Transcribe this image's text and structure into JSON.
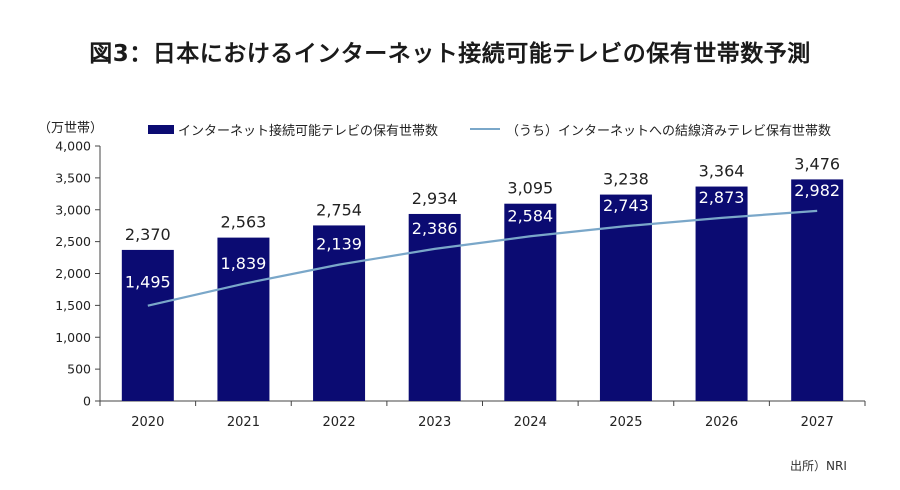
{
  "title": "図3：日本におけるインターネット接続可能テレビの保有世帯数予測",
  "source": "出所）NRI",
  "chart_data": {
    "type": "bar",
    "ylabel": "（万世帯）",
    "ylim": [
      0,
      4000
    ],
    "yticks": [
      "0",
      "500",
      "1,000",
      "1,500",
      "2,000",
      "2,500",
      "3,000",
      "3,500",
      "4,000"
    ],
    "ytick_values": [
      0,
      500,
      1000,
      1500,
      2000,
      2500,
      3000,
      3500,
      4000
    ],
    "categories": [
      "2020",
      "2021",
      "2022",
      "2023",
      "2024",
      "2025",
      "2026",
      "2027"
    ],
    "legend_position": "top",
    "series": [
      {
        "name": "インターネット接続可能テレビの保有世帯数",
        "type": "bar",
        "color": "#0b0b72",
        "values": [
          2370,
          2563,
          2754,
          2934,
          3095,
          3238,
          3364,
          3476
        ],
        "labels": [
          "2,370",
          "2,563",
          "2,754",
          "2,934",
          "3,095",
          "3,238",
          "3,364",
          "3,476"
        ]
      },
      {
        "name": "（うち）インターネットへの結線済みテレビ保有世帯数",
        "type": "line",
        "color": "#7aa7c9",
        "values": [
          1495,
          1839,
          2139,
          2386,
          2584,
          2743,
          2873,
          2982
        ],
        "labels": [
          "1,495",
          "1,839",
          "2,139",
          "2,386",
          "2,584",
          "2,743",
          "2,873",
          "2,982"
        ]
      }
    ]
  }
}
